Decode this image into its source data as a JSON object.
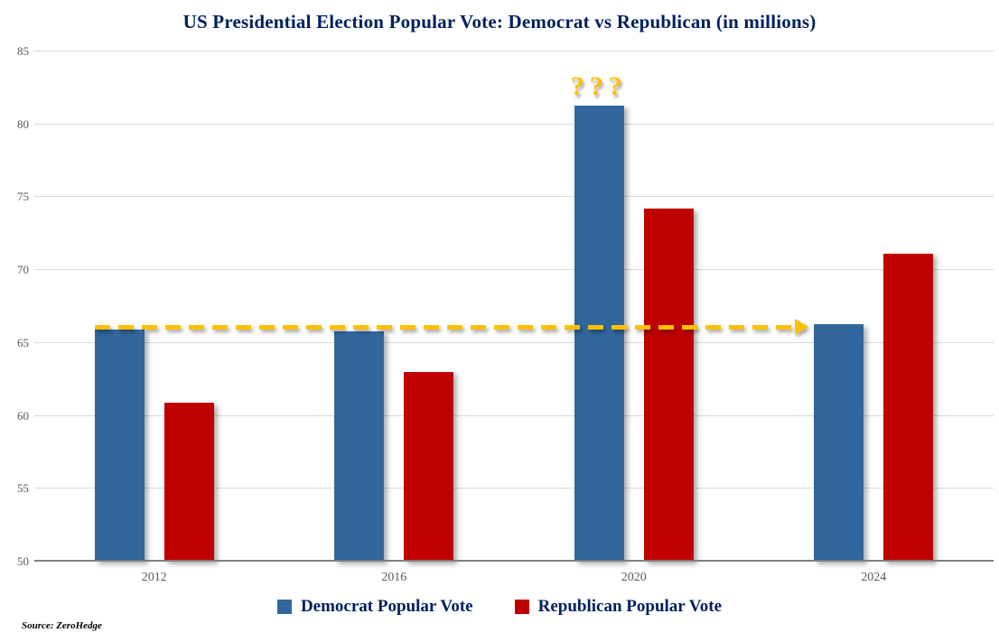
{
  "title": "US Presidential Election Popular Vote: Democrat vs Republican (in millions)",
  "source_note": "Source: ZeroHedge",
  "colors": {
    "democrat": "#31679C",
    "republican": "#C00000",
    "title_text": "#002060",
    "annotation": "#FFC000",
    "gridline": "#D9D9D9",
    "axis_line": "#7F7F7F",
    "tick_text": "#595959",
    "background": "#FFFFFF"
  },
  "legend": {
    "items": [
      {
        "label": "Democrat Popular Vote",
        "color": "#31679C"
      },
      {
        "label": "Republican Popular Vote",
        "color": "#C00000"
      }
    ]
  },
  "chart_data": {
    "type": "bar",
    "title": "US Presidential Election Popular Vote: Democrat vs Republican (in millions)",
    "categories": [
      "2012",
      "2016",
      "2020",
      "2024"
    ],
    "series": [
      {
        "name": "Democrat Popular Vote",
        "color": "#31679C",
        "values": [
          65.9,
          65.8,
          81.3,
          66.3
        ]
      },
      {
        "name": "Republican Popular Vote",
        "color": "#C00000",
        "values": [
          60.9,
          63.0,
          74.2,
          71.1
        ]
      }
    ],
    "ylim": [
      50,
      85
    ],
    "yticks": [
      50,
      55,
      60,
      65,
      70,
      75,
      80,
      85
    ],
    "xlabel": "",
    "ylabel": "",
    "grid": true,
    "legend_position": "bottom",
    "annotations": [
      {
        "type": "text",
        "text": "???",
        "category": "2020",
        "series": "Democrat Popular Vote",
        "color": "#FFC000"
      },
      {
        "type": "arrow",
        "y": 66.2,
        "from_category": "2012",
        "to_category": "2024",
        "line_style": "dashed",
        "color": "#FFC000"
      }
    ]
  }
}
